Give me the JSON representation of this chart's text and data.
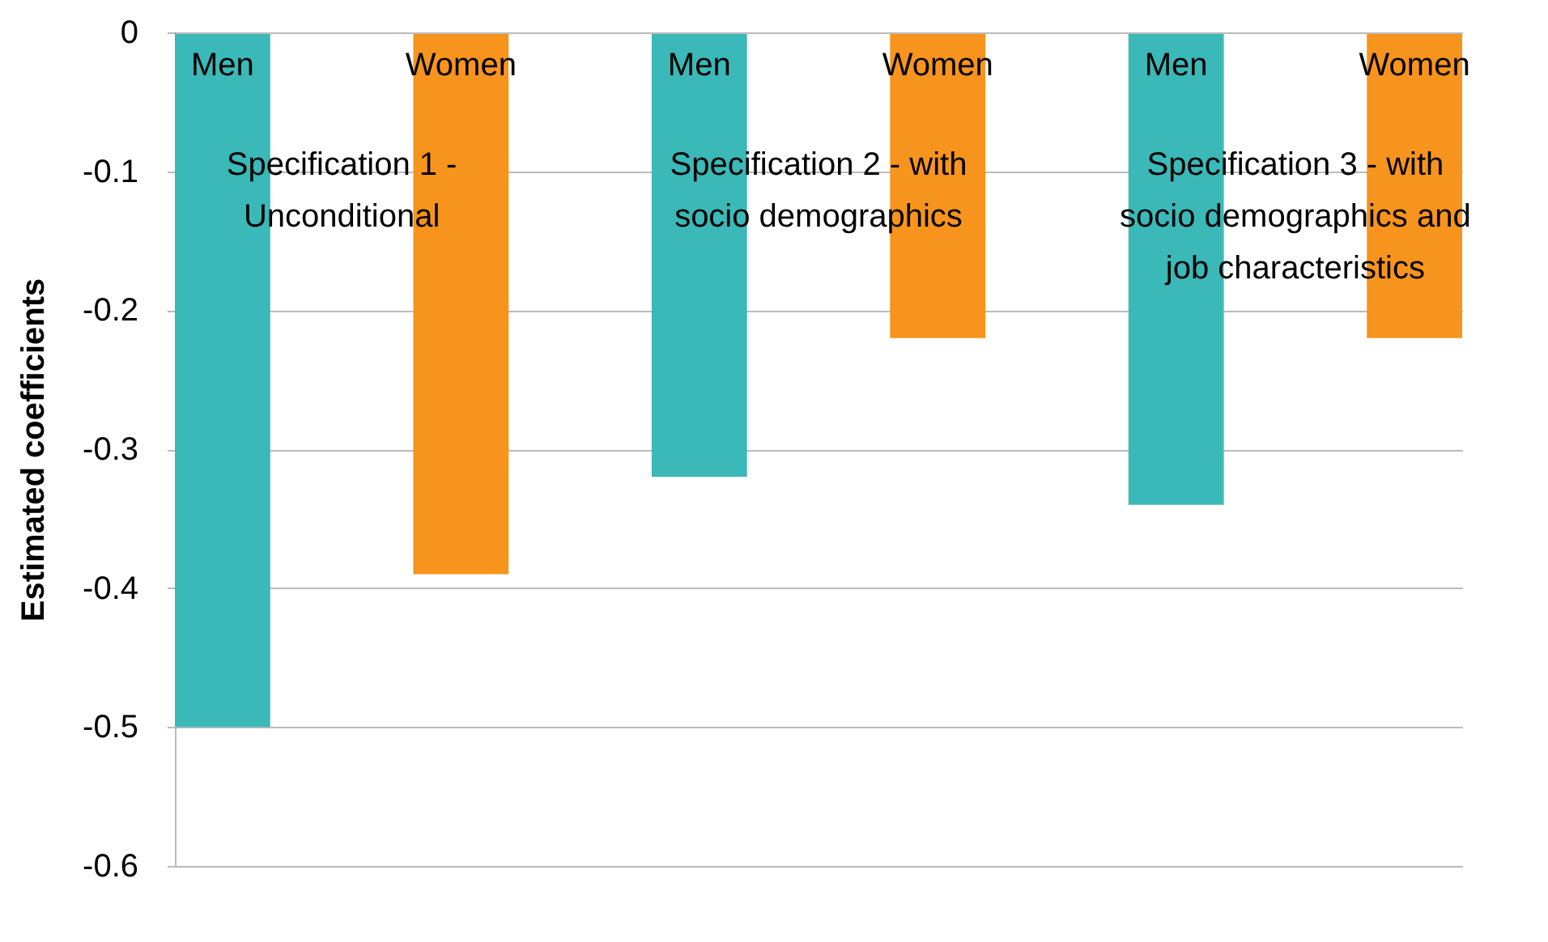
{
  "chart_data": {
    "type": "bar",
    "ylabel": "Estimated coefficients",
    "categories": [
      "Men",
      "Women",
      "Men",
      "Women",
      "Men",
      "Women"
    ],
    "values": [
      -0.5,
      -0.39,
      -0.32,
      -0.22,
      -0.34,
      -0.22
    ],
    "colors": [
      "#3bb8b8",
      "#f7941d",
      "#3bb8b8",
      "#f7941d",
      "#3bb8b8",
      "#f7941d"
    ],
    "ylim": [
      -0.6,
      0
    ],
    "yticks": [
      -0.6,
      -0.5,
      -0.4,
      -0.3,
      -0.2,
      -0.1,
      0
    ],
    "grid": "y",
    "annotations": [
      "Specification 1 -\nUnconditional",
      "Specification 2 - with\nsocio demographics",
      "Specification 3 - with\nsocio demographics and\njob characteristics"
    ]
  }
}
